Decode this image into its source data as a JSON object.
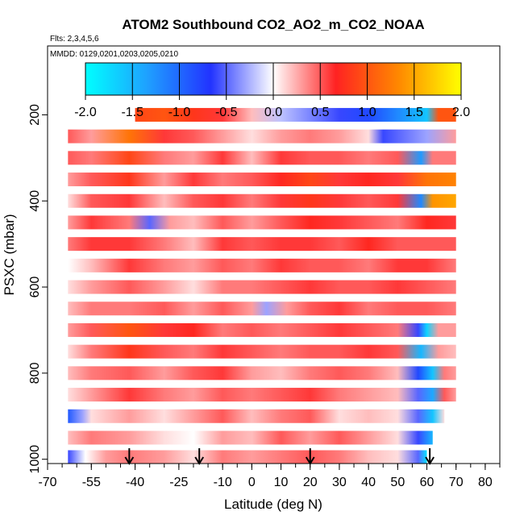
{
  "chart_data": {
    "type": "heatmap",
    "title": "ATOM2 Southbound CO2_AO2_m_CO2_NOAA",
    "subtitle_flights": "Flts: 2,3,4,5,6",
    "subtitle_dates": "MMDD: 0129,0201,0203,0205,0210",
    "xlabel": "Latitude (deg N)",
    "ylabel": "PSXC (mbar)",
    "xlim": [
      -70,
      85
    ],
    "ylim": [
      1010,
      40
    ],
    "x_ticks": [
      -70,
      -55,
      -40,
      -25,
      -10,
      0,
      10,
      20,
      30,
      40,
      50,
      60,
      70,
      80
    ],
    "x_tick_labels": [
      "-70",
      "-55",
      "-40",
      "-25",
      "-10",
      "0",
      "10",
      "20",
      "30",
      "40",
      "50",
      "60",
      "70",
      "80"
    ],
    "y_ticks": [
      200,
      400,
      600,
      800,
      1000
    ],
    "y_tick_labels": [
      "200",
      "400",
      "600",
      "800",
      "1000"
    ],
    "colorbar": {
      "min": -2.0,
      "max": 2.0,
      "ticks": [
        -2.0,
        -1.5,
        -1.0,
        -0.5,
        0.0,
        0.5,
        1.0,
        1.5,
        2.0
      ],
      "tick_labels": [
        "-2.0",
        "-1.5",
        "-1.0",
        "-0.5",
        "0.0",
        "0.5",
        "1.0",
        "1.5",
        "2.0"
      ],
      "colors": [
        "#00ffff",
        "#1f9fff",
        "#2233ff",
        "#ffffff",
        "#ff2222",
        "#ff8800",
        "#ffff00"
      ]
    },
    "profile_markers_lat": [
      -42,
      -18,
      20,
      61
    ],
    "curtain_rows": [
      {
        "p": 200,
        "segments": [
          [
            -40,
            0.9
          ],
          [
            -30,
            1.0
          ],
          [
            -20,
            0.8
          ],
          [
            -10,
            0.6
          ],
          [
            0,
            0.2
          ],
          [
            10,
            -0.2
          ],
          [
            20,
            -0.4
          ],
          [
            30,
            -0.6
          ],
          [
            40,
            -0.8
          ],
          [
            50,
            -1.2
          ],
          [
            60,
            -1.6
          ],
          [
            64,
            1.0
          ],
          [
            70,
            1.0
          ]
        ]
      },
      {
        "p": 250,
        "segments": [
          [
            -63,
            0.5
          ],
          [
            -55,
            0.3
          ],
          [
            -42,
            1.2
          ],
          [
            -30,
            0.6
          ],
          [
            -20,
            0.5
          ],
          [
            -10,
            0.3
          ],
          [
            0,
            0.1
          ],
          [
            10,
            0.3
          ],
          [
            20,
            0.4
          ],
          [
            30,
            0.3
          ],
          [
            40,
            0.1
          ],
          [
            45,
            -0.6
          ],
          [
            60,
            -0.3
          ],
          [
            70,
            0.3
          ]
        ]
      },
      {
        "p": 300,
        "segments": [
          [
            -63,
            0.5
          ],
          [
            -55,
            0.4
          ],
          [
            -42,
            0.9
          ],
          [
            -30,
            0.4
          ],
          [
            -20,
            0.3
          ],
          [
            -10,
            0.6
          ],
          [
            0,
            0.2
          ],
          [
            10,
            0.6
          ],
          [
            20,
            0.5
          ],
          [
            30,
            0.5
          ],
          [
            40,
            0.4
          ],
          [
            50,
            0.5
          ],
          [
            58,
            -1.3
          ],
          [
            62,
            0.4
          ],
          [
            70,
            0.4
          ]
        ]
      },
      {
        "p": 350,
        "segments": [
          [
            -63,
            0.3
          ],
          [
            -55,
            0.5
          ],
          [
            -42,
            0.8
          ],
          [
            -30,
            0.3
          ],
          [
            -20,
            0.6
          ],
          [
            -10,
            0.4
          ],
          [
            0,
            0.5
          ],
          [
            10,
            0.7
          ],
          [
            20,
            0.9
          ],
          [
            30,
            0.6
          ],
          [
            40,
            0.7
          ],
          [
            50,
            0.6
          ],
          [
            60,
            1.2
          ],
          [
            70,
            1.3
          ]
        ]
      },
      {
        "p": 400,
        "segments": [
          [
            -63,
            0.1
          ],
          [
            -55,
            0.5
          ],
          [
            -42,
            0.6
          ],
          [
            -30,
            0.2
          ],
          [
            -20,
            0.5
          ],
          [
            -10,
            0.6
          ],
          [
            0,
            0.4
          ],
          [
            10,
            0.6
          ],
          [
            20,
            0.8
          ],
          [
            30,
            0.6
          ],
          [
            40,
            0.5
          ],
          [
            50,
            0.6
          ],
          [
            58,
            -1.2
          ],
          [
            62,
            1.4
          ],
          [
            70,
            1.5
          ]
        ]
      },
      {
        "p": 450,
        "segments": [
          [
            -63,
            0.3
          ],
          [
            -55,
            0.6
          ],
          [
            -42,
            0.4
          ],
          [
            -35,
            -0.5
          ],
          [
            -28,
            0.3
          ],
          [
            -20,
            0.2
          ],
          [
            -10,
            0.5
          ],
          [
            0,
            0.3
          ],
          [
            10,
            0.5
          ],
          [
            20,
            0.7
          ],
          [
            30,
            0.6
          ],
          [
            40,
            0.5
          ],
          [
            50,
            0.4
          ],
          [
            60,
            0.7
          ],
          [
            70,
            0.6
          ]
        ]
      },
      {
        "p": 500,
        "segments": [
          [
            -63,
            0.4
          ],
          [
            -55,
            0.6
          ],
          [
            -42,
            0.6
          ],
          [
            -30,
            0.4
          ],
          [
            -20,
            0.2
          ],
          [
            -10,
            0.6
          ],
          [
            0,
            0.5
          ],
          [
            10,
            0.6
          ],
          [
            20,
            0.6
          ],
          [
            30,
            0.5
          ],
          [
            40,
            0.7
          ],
          [
            50,
            0.5
          ],
          [
            60,
            0.5
          ],
          [
            70,
            0.5
          ]
        ]
      },
      {
        "p": 550,
        "segments": [
          [
            -63,
            0.0
          ],
          [
            -55,
            0.2
          ],
          [
            -42,
            0.6
          ],
          [
            -30,
            0.4
          ],
          [
            -20,
            0.3
          ],
          [
            -10,
            0.5
          ],
          [
            0,
            0.4
          ],
          [
            10,
            0.6
          ],
          [
            20,
            0.5
          ],
          [
            30,
            0.5
          ],
          [
            40,
            0.4
          ],
          [
            50,
            0.6
          ],
          [
            60,
            0.6
          ],
          [
            70,
            0.4
          ]
        ]
      },
      {
        "p": 600,
        "segments": [
          [
            -63,
            0.1
          ],
          [
            -55,
            0.3
          ],
          [
            -42,
            0.5
          ],
          [
            -30,
            0.3
          ],
          [
            -20,
            0.1
          ],
          [
            -10,
            0.4
          ],
          [
            0,
            0.4
          ],
          [
            10,
            0.5
          ],
          [
            20,
            0.6
          ],
          [
            30,
            0.5
          ],
          [
            40,
            0.5
          ],
          [
            50,
            0.6
          ],
          [
            60,
            0.5
          ],
          [
            70,
            0.4
          ]
        ]
      },
      {
        "p": 650,
        "segments": [
          [
            -63,
            0.2
          ],
          [
            -55,
            0.4
          ],
          [
            -42,
            0.4
          ],
          [
            -30,
            0.5
          ],
          [
            -20,
            0.3
          ],
          [
            -10,
            0.5
          ],
          [
            0,
            0.3
          ],
          [
            5,
            -0.3
          ],
          [
            12,
            0.3
          ],
          [
            20,
            0.5
          ],
          [
            30,
            0.6
          ],
          [
            40,
            0.4
          ],
          [
            50,
            0.5
          ],
          [
            60,
            0.5
          ],
          [
            70,
            0.4
          ]
        ]
      },
      {
        "p": 700,
        "segments": [
          [
            -63,
            0.3
          ],
          [
            -55,
            0.5
          ],
          [
            -42,
            1.0
          ],
          [
            -30,
            0.6
          ],
          [
            -20,
            0.7
          ],
          [
            -10,
            0.4
          ],
          [
            0,
            0.5
          ],
          [
            10,
            0.4
          ],
          [
            20,
            0.5
          ],
          [
            30,
            0.6
          ],
          [
            40,
            0.5
          ],
          [
            50,
            0.4
          ],
          [
            57,
            -0.6
          ],
          [
            60,
            -1.7
          ],
          [
            64,
            0.3
          ],
          [
            70,
            0.3
          ]
        ]
      },
      {
        "p": 750,
        "segments": [
          [
            -63,
            0.1
          ],
          [
            -55,
            0.4
          ],
          [
            -42,
            0.8
          ],
          [
            -30,
            0.5
          ],
          [
            -20,
            0.4
          ],
          [
            -10,
            0.6
          ],
          [
            0,
            0.5
          ],
          [
            10,
            0.4
          ],
          [
            20,
            0.5
          ],
          [
            30,
            0.5
          ],
          [
            40,
            0.6
          ],
          [
            50,
            0.5
          ],
          [
            58,
            -1.5
          ],
          [
            64,
            0.3
          ],
          [
            70,
            0.2
          ]
        ]
      },
      {
        "p": 800,
        "segments": [
          [
            -63,
            0.2
          ],
          [
            -55,
            0.4
          ],
          [
            -42,
            0.5
          ],
          [
            -30,
            0.3
          ],
          [
            -20,
            0.5
          ],
          [
            -10,
            0.6
          ],
          [
            0,
            0.3
          ],
          [
            10,
            0.2
          ],
          [
            20,
            0.4
          ],
          [
            30,
            0.5
          ],
          [
            40,
            0.4
          ],
          [
            50,
            0.2
          ],
          [
            57,
            -0.8
          ],
          [
            62,
            -1.6
          ],
          [
            66,
            0.4
          ],
          [
            70,
            0.3
          ]
        ]
      },
      {
        "p": 850,
        "segments": [
          [
            -63,
            0.1
          ],
          [
            -55,
            0.3
          ],
          [
            -42,
            0.6
          ],
          [
            -30,
            0.4
          ],
          [
            -20,
            0.3
          ],
          [
            -10,
            0.5
          ],
          [
            0,
            0.4
          ],
          [
            10,
            0.5
          ],
          [
            20,
            0.6
          ],
          [
            30,
            0.4
          ],
          [
            40,
            0.3
          ],
          [
            50,
            0.2
          ],
          [
            57,
            -0.5
          ],
          [
            62,
            -1.4
          ],
          [
            66,
            0.5
          ],
          [
            70,
            0.3
          ]
        ]
      },
      {
        "p": 900,
        "segments": [
          [
            -63,
            -0.9
          ],
          [
            -58,
            -0.3
          ],
          [
            -55,
            0.1
          ],
          [
            -42,
            0.3
          ],
          [
            -30,
            0.1
          ],
          [
            -20,
            0.3
          ],
          [
            -10,
            0.5
          ],
          [
            0,
            0.2
          ],
          [
            10,
            0.4
          ],
          [
            20,
            0.5
          ],
          [
            30,
            0.1
          ],
          [
            40,
            0.2
          ],
          [
            50,
            0.1
          ],
          [
            57,
            -0.5
          ],
          [
            62,
            -1.6
          ],
          [
            66,
            0.1
          ]
        ]
      },
      {
        "p": 950,
        "segments": [
          [
            -63,
            0.2
          ],
          [
            -55,
            0.4
          ],
          [
            -42,
            0.3
          ],
          [
            -30,
            0.1
          ],
          [
            -20,
            0.0
          ],
          [
            -10,
            0.3
          ],
          [
            0,
            0.2
          ],
          [
            10,
            0.5
          ],
          [
            20,
            0.3
          ],
          [
            30,
            0.5
          ],
          [
            40,
            0.3
          ],
          [
            50,
            0.1
          ],
          [
            57,
            -0.6
          ],
          [
            62,
            -1.5
          ]
        ]
      },
      {
        "p": 995,
        "segments": [
          [
            -63,
            -0.6
          ],
          [
            -57,
            0.0
          ],
          [
            -50,
            0.3
          ],
          [
            -42,
            0.4
          ],
          [
            -30,
            0.3
          ],
          [
            -20,
            0.1
          ],
          [
            -10,
            0.4
          ],
          [
            0,
            0.3
          ],
          [
            10,
            0.4
          ],
          [
            20,
            0.5
          ],
          [
            30,
            0.4
          ],
          [
            40,
            0.2
          ],
          [
            50,
            0.1
          ],
          [
            57,
            -0.5
          ],
          [
            60,
            -1.8
          ]
        ]
      }
    ]
  }
}
